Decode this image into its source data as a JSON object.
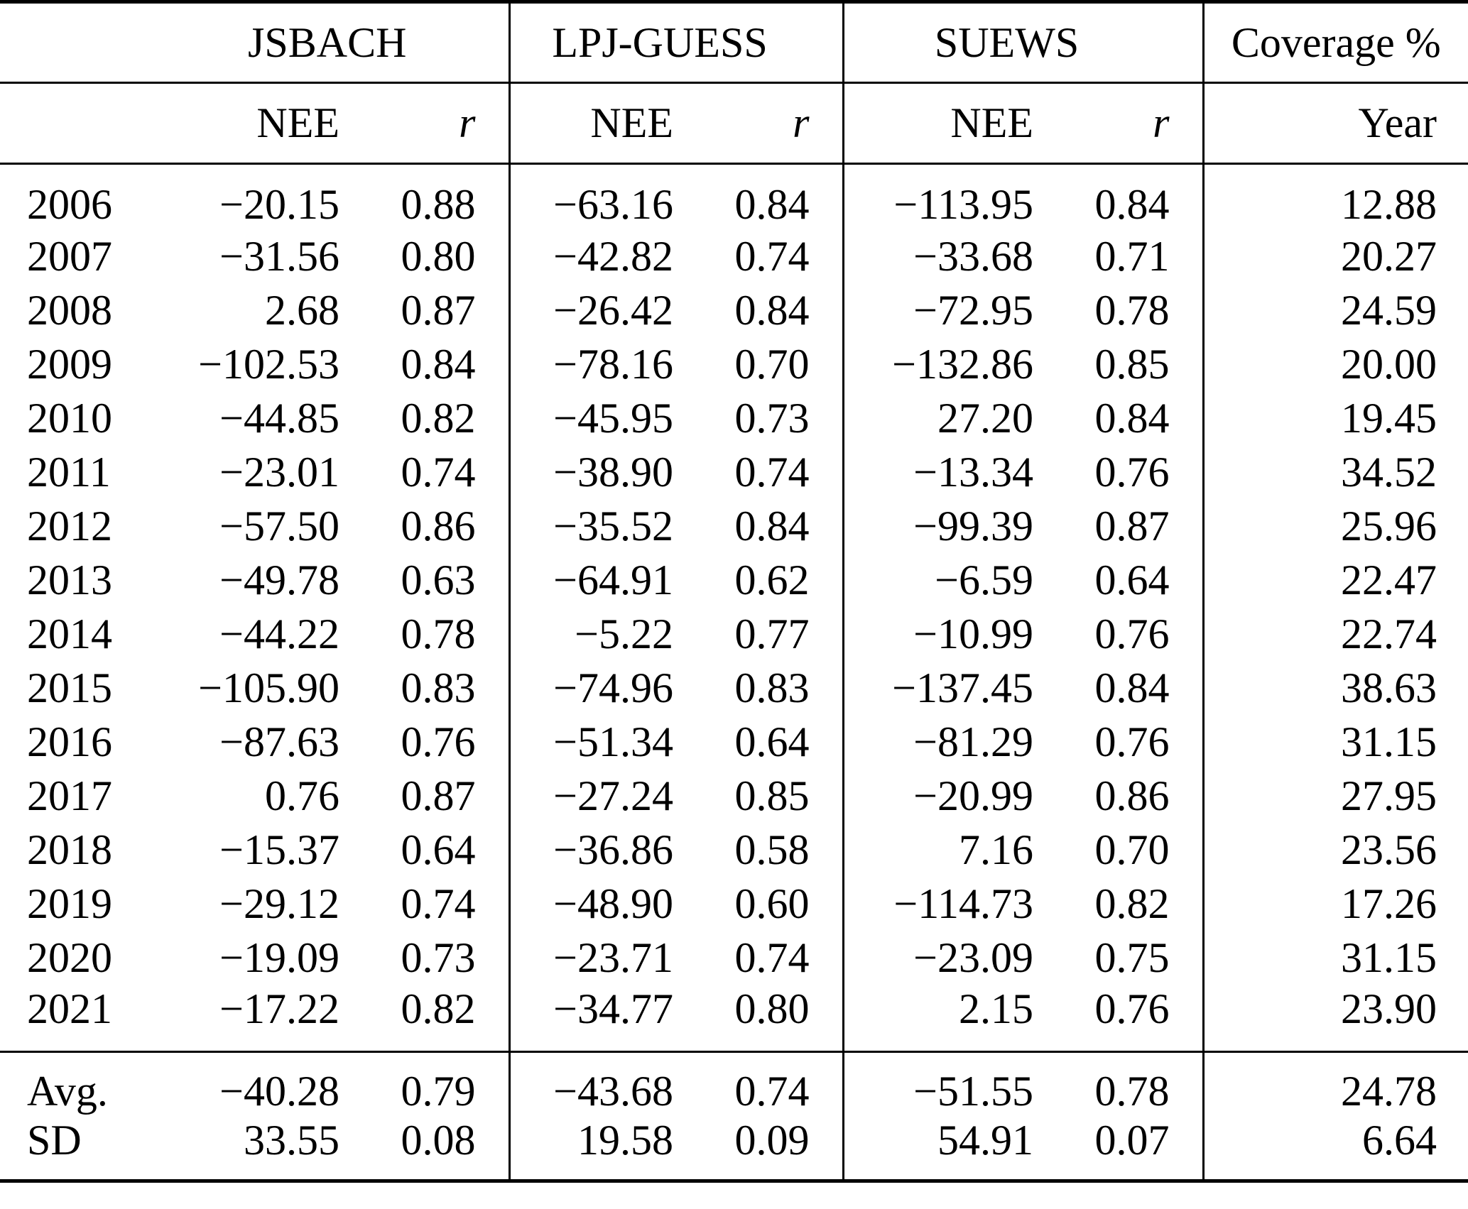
{
  "table": {
    "groups": [
      {
        "label": "JSBACH"
      },
      {
        "label": "LPJ-GUESS"
      },
      {
        "label": "SUEWS"
      },
      {
        "label": "Coverage %"
      }
    ],
    "subheader": {
      "nee": "NEE",
      "r": "r",
      "year": "Year"
    },
    "rows": [
      {
        "label": "2006",
        "values": [
          "−20.15",
          "0.88",
          "−63.16",
          "0.84",
          "−113.95",
          "0.84",
          "12.88"
        ]
      },
      {
        "label": "2007",
        "values": [
          "−31.56",
          "0.80",
          "−42.82",
          "0.74",
          "−33.68",
          "0.71",
          "20.27"
        ]
      },
      {
        "label": "2008",
        "values": [
          "2.68",
          "0.87",
          "−26.42",
          "0.84",
          "−72.95",
          "0.78",
          "24.59"
        ]
      },
      {
        "label": "2009",
        "values": [
          "−102.53",
          "0.84",
          "−78.16",
          "0.70",
          "−132.86",
          "0.85",
          "20.00"
        ]
      },
      {
        "label": "2010",
        "values": [
          "−44.85",
          "0.82",
          "−45.95",
          "0.73",
          "27.20",
          "0.84",
          "19.45"
        ]
      },
      {
        "label": "2011",
        "values": [
          "−23.01",
          "0.74",
          "−38.90",
          "0.74",
          "−13.34",
          "0.76",
          "34.52"
        ]
      },
      {
        "label": "2012",
        "values": [
          "−57.50",
          "0.86",
          "−35.52",
          "0.84",
          "−99.39",
          "0.87",
          "25.96"
        ]
      },
      {
        "label": "2013",
        "values": [
          "−49.78",
          "0.63",
          "−64.91",
          "0.62",
          "−6.59",
          "0.64",
          "22.47"
        ]
      },
      {
        "label": "2014",
        "values": [
          "−44.22",
          "0.78",
          "−5.22",
          "0.77",
          "−10.99",
          "0.76",
          "22.74"
        ]
      },
      {
        "label": "2015",
        "values": [
          "−105.90",
          "0.83",
          "−74.96",
          "0.83",
          "−137.45",
          "0.84",
          "38.63"
        ]
      },
      {
        "label": "2016",
        "values": [
          "−87.63",
          "0.76",
          "−51.34",
          "0.64",
          "−81.29",
          "0.76",
          "31.15"
        ]
      },
      {
        "label": "2017",
        "values": [
          "0.76",
          "0.87",
          "−27.24",
          "0.85",
          "−20.99",
          "0.86",
          "27.95"
        ]
      },
      {
        "label": "2018",
        "values": [
          "−15.37",
          "0.64",
          "−36.86",
          "0.58",
          "7.16",
          "0.70",
          "23.56"
        ]
      },
      {
        "label": "2019",
        "values": [
          "−29.12",
          "0.74",
          "−48.90",
          "0.60",
          "−114.73",
          "0.82",
          "17.26"
        ]
      },
      {
        "label": "2020",
        "values": [
          "−19.09",
          "0.73",
          "−23.71",
          "0.74",
          "−23.09",
          "0.75",
          "31.15"
        ]
      },
      {
        "label": "2021",
        "values": [
          "−17.22",
          "0.82",
          "−34.77",
          "0.80",
          "2.15",
          "0.76",
          "23.90"
        ]
      }
    ],
    "summary": [
      {
        "label": "Avg.",
        "values": [
          "−40.28",
          "0.79",
          "−43.68",
          "0.74",
          "−51.55",
          "0.78",
          "24.78"
        ]
      },
      {
        "label": "SD",
        "values": [
          "33.55",
          "0.08",
          "19.58",
          "0.09",
          "54.91",
          "0.07",
          "6.64"
        ]
      }
    ]
  }
}
